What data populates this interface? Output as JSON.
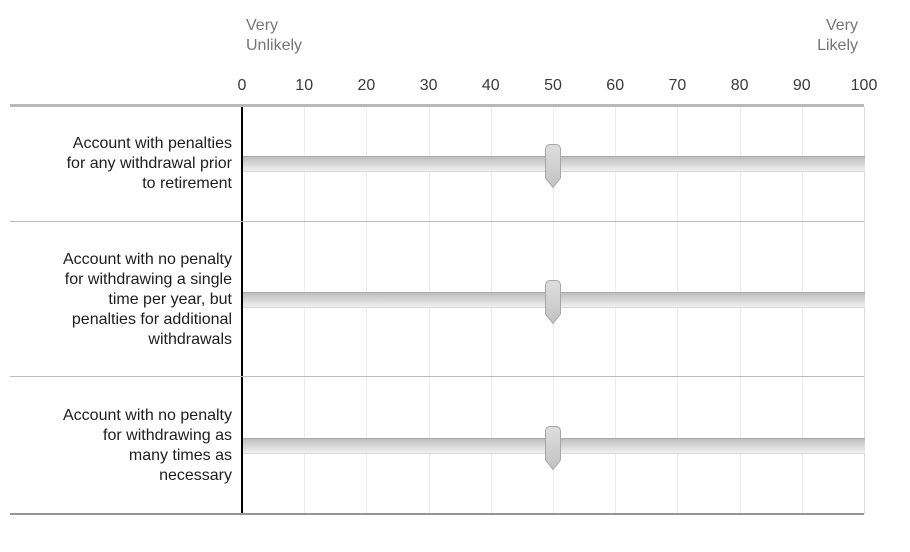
{
  "question": {
    "type": "slider-matrix"
  },
  "scale": {
    "left_anchor": "Very\nUnlikely",
    "right_anchor": "Very\nLikely",
    "min": 0,
    "max": 100,
    "ticks": [
      0,
      10,
      20,
      30,
      40,
      50,
      60,
      70,
      80,
      90,
      100
    ]
  },
  "rows": [
    {
      "label": "Account with penalties\nfor any withdrawal prior\nto retirement",
      "value": 50
    },
    {
      "label": "Account with no penalty\nfor withdrawing a single\ntime per year, but\npenalties for additional\nwithdrawals",
      "value": 50
    },
    {
      "label": "Account with no penalty\nfor withdrawing as\nmany times as\nnecessary",
      "value": 50
    }
  ],
  "colors": {
    "anchor_text": "#757575",
    "tick_text": "#3a3a3a",
    "label_text": "#1d1d1d",
    "axis_line": "#000000",
    "grid_line": "#ececec",
    "header_line": "#b9b9b9",
    "row_divider": "#bdbdbd",
    "bottom_border": "#969696",
    "track_top_border": "#a9a9a9",
    "handle_fill_top": "#dedede",
    "handle_fill_bottom": "#c2c2c2",
    "handle_border": "#a6a6a6"
  }
}
